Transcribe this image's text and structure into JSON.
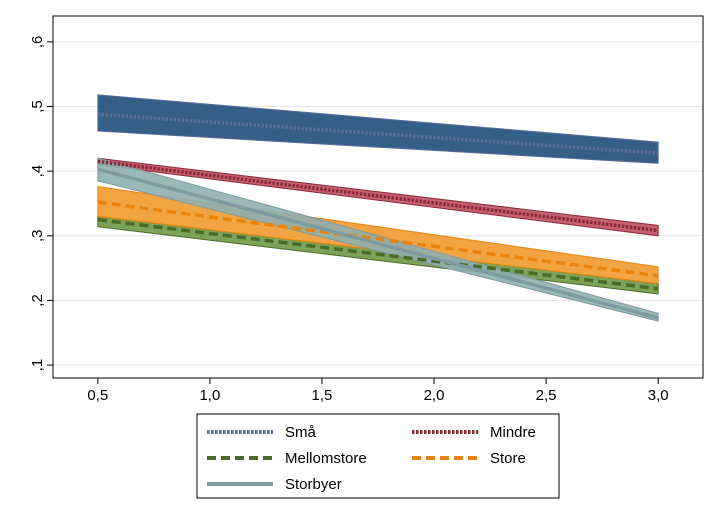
{
  "chart_data": {
    "type": "line",
    "title": "",
    "xlabel": "",
    "ylabel": "",
    "xlim": [
      0.3,
      3.2
    ],
    "ylim": [
      0.08,
      0.64
    ],
    "x_ticks": [
      0.5,
      1.0,
      1.5,
      2.0,
      2.5,
      3.0
    ],
    "x_tick_labels": [
      "0,5",
      "1,0",
      "1,5",
      "2,0",
      "2,5",
      "3,0"
    ],
    "y_ticks": [
      0.1,
      0.2,
      0.3,
      0.4,
      0.5,
      0.6
    ],
    "y_tick_labels": [
      ",1",
      ",2",
      ",3",
      ",4",
      ",5",
      ",6"
    ],
    "grid": true,
    "legend_position": "bottom",
    "x": [
      0.5,
      3.0
    ],
    "series": [
      {
        "name": "Små",
        "line_style": "dotted",
        "color": "#5c6f9b",
        "band_color": "#1f4e79",
        "values": [
          0.488,
          0.428
        ],
        "lower": [
          0.462,
          0.412
        ],
        "upper": [
          0.518,
          0.445
        ]
      },
      {
        "name": "Mindre",
        "line_style": "dotted",
        "color": "#8b2a36",
        "band_color": "#c05060",
        "values": [
          0.415,
          0.308
        ],
        "lower": [
          0.41,
          0.3
        ],
        "upper": [
          0.42,
          0.316
        ]
      },
      {
        "name": "Mellomstore",
        "line_style": "dashed",
        "color": "#4a6a2a",
        "band_color": "#6e9a46",
        "values": [
          0.325,
          0.218
        ],
        "lower": [
          0.314,
          0.21
        ],
        "upper": [
          0.33,
          0.226
        ]
      },
      {
        "name": "Store",
        "line_style": "dashed",
        "color": "#e8820c",
        "band_color": "#f29a2e",
        "values": [
          0.352,
          0.238
        ],
        "lower": [
          0.33,
          0.226
        ],
        "upper": [
          0.376,
          0.252
        ]
      },
      {
        "name": "Storbyer",
        "line_style": "solid",
        "color": "#7d9aa0",
        "band_color": "#8fb0b0",
        "values": [
          0.403,
          0.173
        ],
        "lower": [
          0.385,
          0.168
        ],
        "upper": [
          0.42,
          0.18
        ]
      }
    ]
  }
}
